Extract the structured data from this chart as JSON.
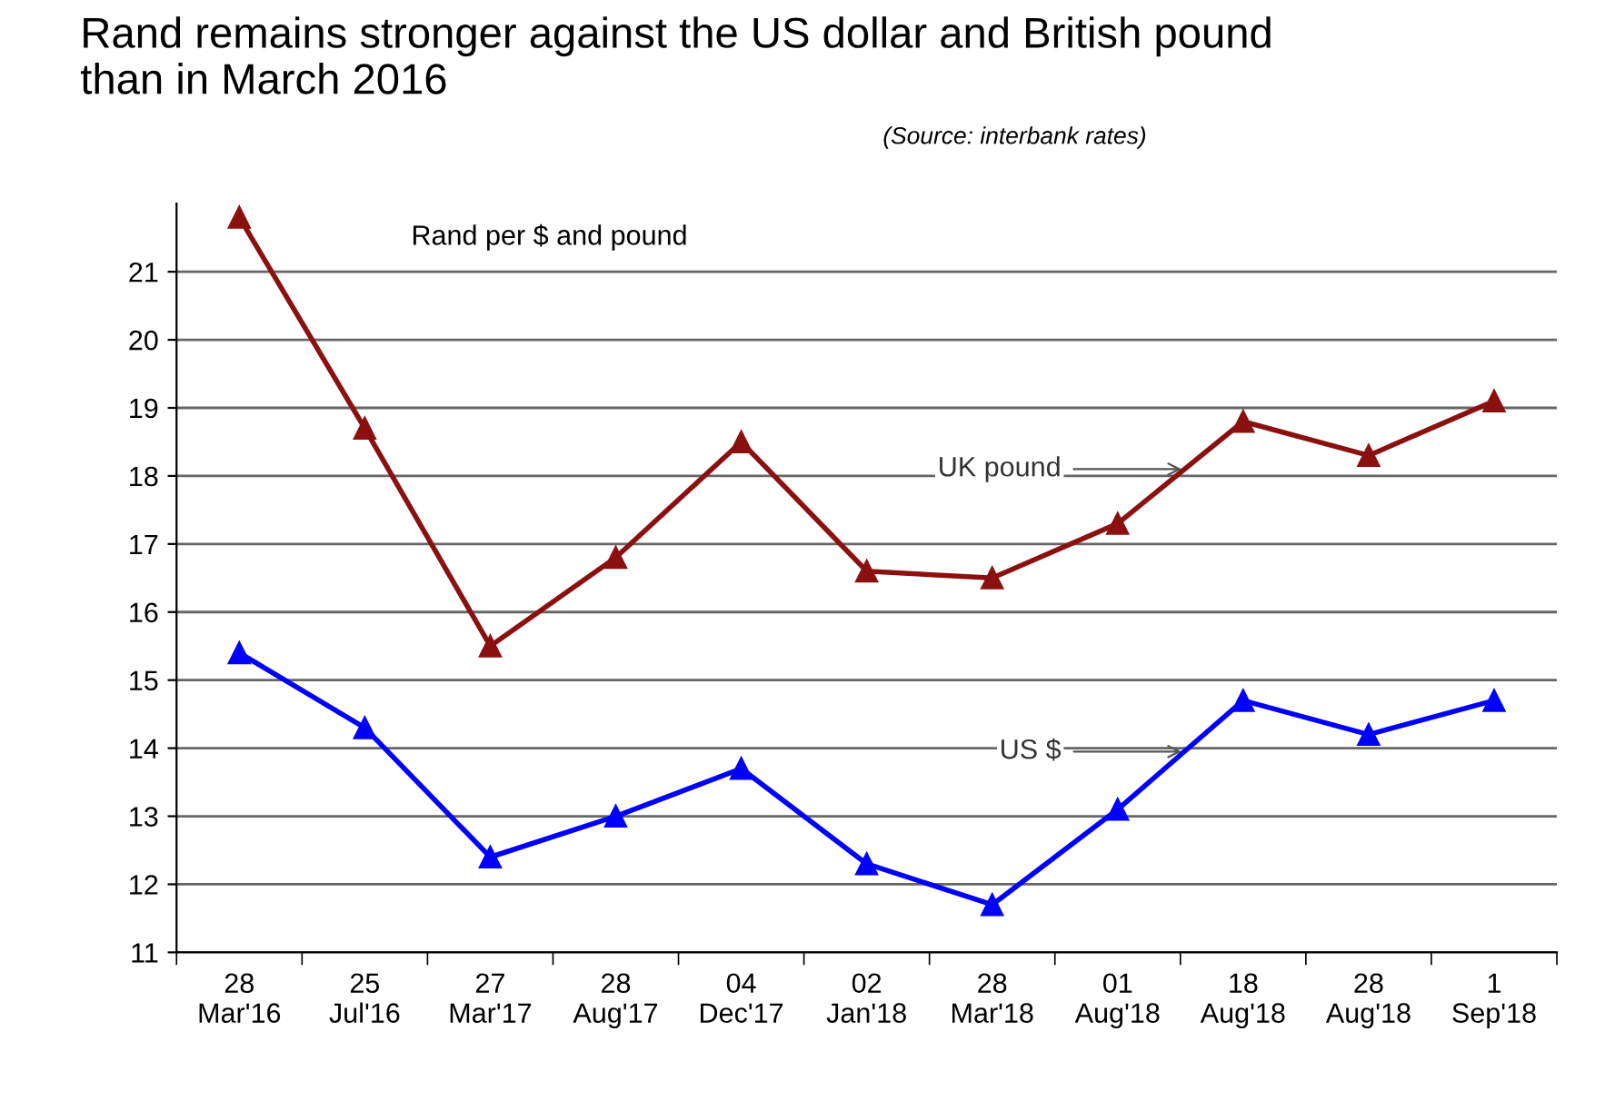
{
  "chart_data": {
    "type": "line",
    "title": "Rand remains stronger against the US dollar and British pound\nthan in March 2016",
    "annotations": [
      "(Source: interbank rates)",
      "Rand per $ and pound"
    ],
    "categories": [
      "28\nMar'16",
      "25\nJul'16",
      "27\nMar'17",
      "28\nAug'17",
      "04\nDec'17",
      "02\nJan'18",
      "28\nMar'18",
      "01\nAug'18",
      "18\nAug'18",
      "28\nAug'18",
      "1\nSep'18"
    ],
    "series": [
      {
        "name": "UK pound",
        "color": "#8b1010",
        "values": [
          21.8,
          18.7,
          15.5,
          16.8,
          18.5,
          16.6,
          16.5,
          17.3,
          18.8,
          18.3,
          19.1
        ]
      },
      {
        "name": "US $",
        "color": "#0000ff",
        "values": [
          15.4,
          14.3,
          12.4,
          13.0,
          13.7,
          12.3,
          11.7,
          13.1,
          14.7,
          14.2,
          14.7
        ]
      }
    ],
    "ylim": [
      11,
      22
    ],
    "yticks": [
      11,
      12,
      13,
      14,
      15,
      16,
      17,
      18,
      19,
      20,
      21
    ],
    "grid": "y",
    "marker": "triangle",
    "line_style": "solid",
    "legend": false
  }
}
